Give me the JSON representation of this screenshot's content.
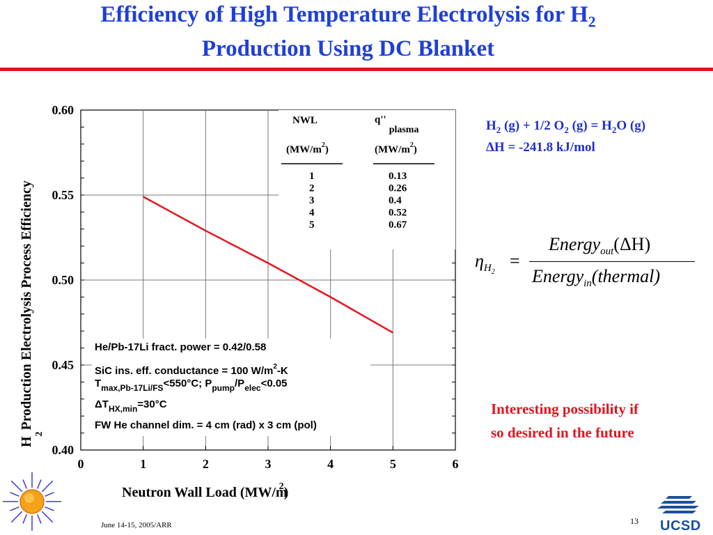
{
  "slide": {
    "title_line1": "Efficiency of High Temperature Electrolysis for H",
    "title_sub": "2",
    "title_line2": "Production Using DC Blanket",
    "reaction": {
      "h": "H",
      "h_sub": "2",
      "part1": " (g) + 1/2 O",
      "o_sub": "2",
      "part2": " (g) = H",
      "h2o_sub": "2",
      "part3": "O (g)",
      "delta": "ΔH = -241.8 kJ/mol"
    },
    "formula": {
      "eta": "η",
      "eta_sub": "H",
      "eta_subsub": "2",
      "equals": "=",
      "num_main": "Energy",
      "num_sub": "out",
      "num_tail": "(ΔH)",
      "den_main": "Energy",
      "den_sub": "in",
      "den_tail": "(thermal)"
    },
    "note_line1": "Interesting possibility if",
    "note_line2": "so desired in the future",
    "footer_date": "June 14-15, 2005/ARR",
    "page_number": "13",
    "logo_text": "UCSD",
    "colors": {
      "title": "#1f3fd8",
      "accent_red": "#e0141e",
      "equation_blue": "#1f2fd0"
    }
  },
  "chart_data": {
    "type": "line",
    "x": [
      1,
      2,
      3,
      4,
      5
    ],
    "series": [
      {
        "values": [
          0.549,
          0.529,
          0.51,
          0.49,
          0.469
        ],
        "color": "#e8141e"
      }
    ],
    "xlim": [
      0,
      6
    ],
    "ylim": [
      0.4,
      0.6
    ],
    "xticks": [
      "0",
      "1",
      "2",
      "3",
      "4",
      "5",
      "6"
    ],
    "yticks": [
      "0.40",
      "0.45",
      "0.50",
      "0.55",
      "0.60"
    ],
    "xlabel": "Neutron Wall Load (MW/m",
    "xlabel_sup": "2",
    "xlabel_tail": ")",
    "ylabel_h": "H",
    "ylabel_sub": "2",
    "ylabel_rest": "Production Electrolysis Process Efficiency",
    "grid": true,
    "table": {
      "col1_header": "NWL",
      "col1_unit": "(MW/m",
      "col2_header": "q''",
      "col2_sub": "plasma",
      "col2_unit": "(MW/m",
      "unit_sup": "2",
      "unit_close": ")",
      "nwl": [
        "1",
        "2",
        "3",
        "4",
        "5"
      ],
      "q_plasma": [
        "0.13",
        "0.26",
        "0.4",
        "0.52",
        "0.67"
      ]
    },
    "annotations": {
      "line1": "He/Pb-17Li fract. power = 0.42/0.58",
      "line2a": "SiC ins. eff. conductance = 100 W/m",
      "line2_sup": "2",
      "line2b": "-K",
      "line3_T": "T",
      "line3_sub1": "max,Pb-17Li/FS",
      "line3_mid": "<550°C; P",
      "line3_sub2": "pump",
      "line3_slash": "/P",
      "line3_sub3": "elec",
      "line3_tail": "<0.05",
      "line4_T": "ΔT",
      "line4_sub": "HX,min",
      "line4_tail": "=30°C",
      "line5": "FW He channel dim. = 4 cm (rad) x 3 cm (pol)"
    }
  }
}
